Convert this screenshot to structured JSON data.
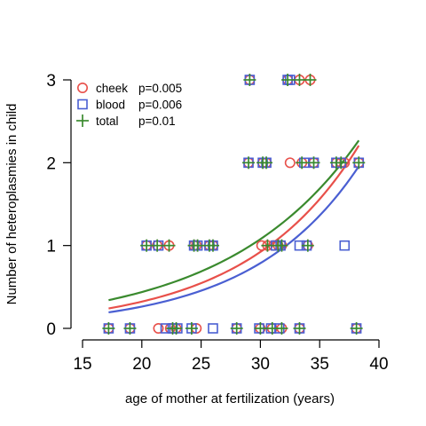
{
  "chart_data": {
    "type": "scatter",
    "title": "",
    "xlabel": "age of mother at fertilization (years)",
    "ylabel": "Number of heteroplasmies in child",
    "xlim": [
      15,
      40
    ],
    "ylim": [
      0,
      3
    ],
    "xticks": [
      "15",
      "20",
      "25",
      "30",
      "35",
      "40"
    ],
    "yticks": [
      "0",
      "1",
      "2",
      "3"
    ],
    "grid": false,
    "legend_position": "top-left",
    "colors": {
      "cheek": "#e8504a",
      "blood": "#4a5fd2",
      "total": "#3a8a2e"
    },
    "series": [
      {
        "name": "cheek",
        "legend_label": "cheek",
        "p_label": "p=0.005",
        "marker": "circle",
        "points": [
          [
            17.2,
            0
          ],
          [
            19.0,
            0
          ],
          [
            21.4,
            0
          ],
          [
            22.4,
            0
          ],
          [
            22.9,
            0
          ],
          [
            24.6,
            0
          ],
          [
            28.0,
            0
          ],
          [
            30.0,
            0
          ],
          [
            31.0,
            0
          ],
          [
            31.8,
            0
          ],
          [
            33.3,
            0
          ],
          [
            38.1,
            0
          ],
          [
            20.4,
            1
          ],
          [
            21.3,
            1
          ],
          [
            22.3,
            1
          ],
          [
            24.4,
            1
          ],
          [
            24.6,
            1
          ],
          [
            25.7,
            1
          ],
          [
            26.0,
            1
          ],
          [
            30.1,
            1
          ],
          [
            30.6,
            1
          ],
          [
            31.1,
            1
          ],
          [
            31.5,
            1
          ],
          [
            31.8,
            1
          ],
          [
            34.0,
            1
          ],
          [
            29.0,
            2
          ],
          [
            30.2,
            2
          ],
          [
            30.5,
            2
          ],
          [
            32.5,
            2
          ],
          [
            33.5,
            2
          ],
          [
            34.5,
            2
          ],
          [
            36.4,
            2
          ],
          [
            36.8,
            2
          ],
          [
            37.1,
            2
          ],
          [
            38.3,
            2
          ],
          [
            29.1,
            3
          ],
          [
            32.3,
            3
          ],
          [
            33.3,
            3
          ],
          [
            34.2,
            3
          ]
        ],
        "fit": {
          "a": -3.23,
          "b": 0.105
        }
      },
      {
        "name": "blood",
        "legend_label": "blood",
        "p_label": "p=0.006",
        "marker": "square",
        "points": [
          [
            17.2,
            0
          ],
          [
            19.0,
            0
          ],
          [
            22.0,
            0
          ],
          [
            22.6,
            0
          ],
          [
            23.0,
            0
          ],
          [
            24.2,
            0
          ],
          [
            26.0,
            0
          ],
          [
            28.0,
            0
          ],
          [
            29.9,
            0
          ],
          [
            30.9,
            0
          ],
          [
            31.6,
            0
          ],
          [
            33.3,
            0
          ],
          [
            38.1,
            0
          ],
          [
            20.4,
            1
          ],
          [
            21.4,
            1
          ],
          [
            24.4,
            1
          ],
          [
            24.7,
            1
          ],
          [
            25.7,
            1
          ],
          [
            26.0,
            1
          ],
          [
            31.3,
            1
          ],
          [
            31.7,
            1
          ],
          [
            33.3,
            1
          ],
          [
            33.9,
            1
          ],
          [
            37.1,
            1
          ],
          [
            29.0,
            2
          ],
          [
            30.2,
            2
          ],
          [
            30.5,
            2
          ],
          [
            33.7,
            2
          ],
          [
            34.5,
            2
          ],
          [
            36.4,
            2
          ],
          [
            36.8,
            2
          ],
          [
            38.3,
            2
          ],
          [
            29.1,
            3
          ],
          [
            32.3,
            3
          ],
          [
            32.5,
            3
          ]
        ],
        "fit": {
          "a": -3.53,
          "b": 0.1097
        }
      },
      {
        "name": "total",
        "legend_label": "total",
        "p_label": "p=0.01",
        "marker": "plus",
        "points": [
          [
            17.2,
            0
          ],
          [
            19.0,
            0
          ],
          [
            22.6,
            0
          ],
          [
            22.9,
            0
          ],
          [
            24.2,
            0
          ],
          [
            28.0,
            0
          ],
          [
            30.0,
            0
          ],
          [
            31.0,
            0
          ],
          [
            31.8,
            0
          ],
          [
            33.3,
            0
          ],
          [
            38.1,
            0
          ],
          [
            20.4,
            1
          ],
          [
            21.3,
            1
          ],
          [
            22.3,
            1
          ],
          [
            24.4,
            1
          ],
          [
            24.7,
            1
          ],
          [
            25.7,
            1
          ],
          [
            26.0,
            1
          ],
          [
            30.6,
            1
          ],
          [
            31.5,
            1
          ],
          [
            31.8,
            1
          ],
          [
            34.0,
            1
          ],
          [
            29.0,
            2
          ],
          [
            30.2,
            2
          ],
          [
            30.5,
            2
          ],
          [
            33.5,
            2
          ],
          [
            34.5,
            2
          ],
          [
            36.4,
            2
          ],
          [
            36.8,
            2
          ],
          [
            38.3,
            2
          ],
          [
            29.1,
            3
          ],
          [
            32.3,
            3
          ],
          [
            33.3,
            3
          ],
          [
            34.2,
            3
          ]
        ],
        "fit": {
          "a": -2.62,
          "b": 0.0898
        }
      }
    ],
    "fit_range": [
      17.2,
      38.3
    ]
  }
}
